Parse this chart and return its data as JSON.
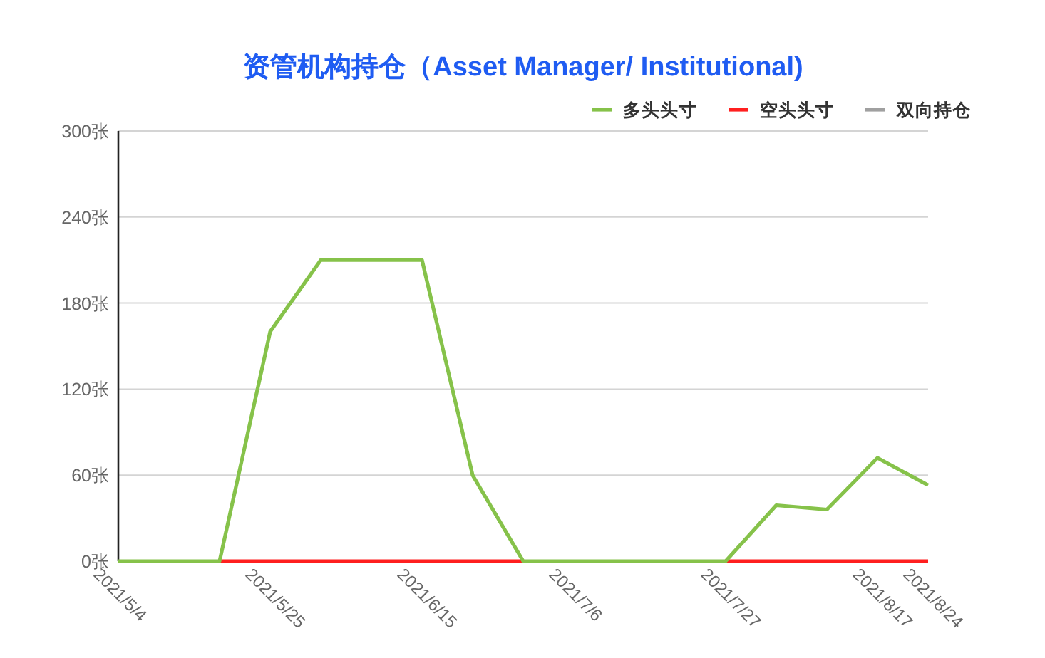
{
  "chart_data": {
    "type": "line",
    "title": "资管机构持仓（Asset Manager/ Institutional)",
    "categories": [
      "2021/5/4",
      null,
      null,
      "2021/5/25",
      null,
      null,
      "2021/6/15",
      null,
      null,
      "2021/7/6",
      null,
      null,
      "2021/7/27",
      null,
      null,
      "2021/8/17",
      "2021/8/24"
    ],
    "series": [
      {
        "name": "多头头寸",
        "color": "#86c24a",
        "values": [
          0,
          0,
          0,
          160,
          210,
          210,
          210,
          60,
          0,
          0,
          0,
          0,
          0,
          39,
          36,
          72,
          53
        ]
      },
      {
        "name": "空头头寸",
        "color": "#ff1f1f",
        "values": [
          null,
          null,
          0,
          0,
          0,
          0,
          0,
          0,
          0,
          null,
          null,
          null,
          0,
          0,
          0,
          0,
          0
        ]
      },
      {
        "name": "双向持仓",
        "color": "#a0a0a0",
        "values": [
          null,
          null,
          null,
          null,
          null,
          null,
          null,
          null,
          null,
          null,
          null,
          null,
          null,
          null,
          null,
          null,
          null
        ]
      }
    ],
    "ylim": [
      0,
      300
    ],
    "yticks": [
      {
        "value": 0,
        "label": "0张"
      },
      {
        "value": 60,
        "label": "60张"
      },
      {
        "value": 120,
        "label": "120张"
      },
      {
        "value": 180,
        "label": "180张"
      },
      {
        "value": 240,
        "label": "240张"
      },
      {
        "value": 300,
        "label": "300张"
      }
    ],
    "grid": "y",
    "legend": "top right"
  }
}
